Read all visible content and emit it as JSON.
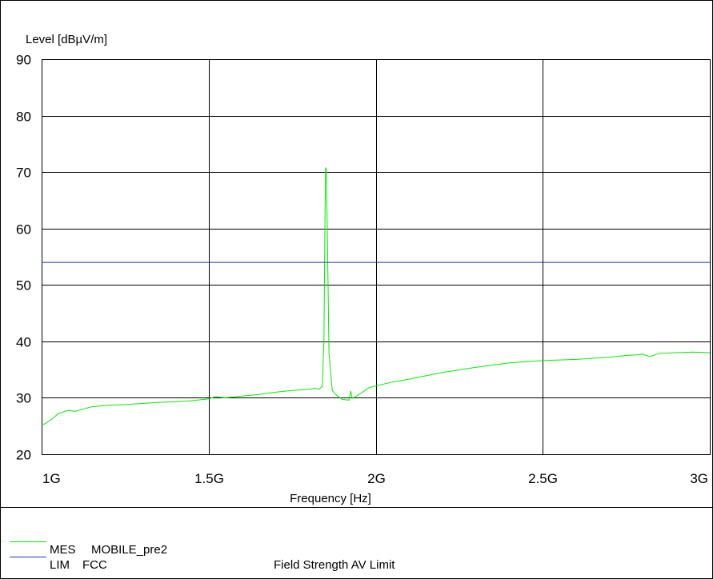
{
  "chart_data": {
    "type": "line",
    "ylabel": "Level [dBµV/m]",
    "xlabel": "Frequency [Hz]",
    "x_range_hz": [
      1000000000,
      3000000000
    ],
    "ylim": [
      20,
      90
    ],
    "grid": true,
    "x_ticks": [
      {
        "value": 1000000000,
        "label": "1G"
      },
      {
        "value": 1500000000,
        "label": "1.5G"
      },
      {
        "value": 2000000000,
        "label": "2G"
      },
      {
        "value": 2500000000,
        "label": "2.5G"
      },
      {
        "value": 3000000000,
        "label": "3G"
      }
    ],
    "y_ticks": [
      20,
      30,
      40,
      50,
      60,
      70,
      80,
      90
    ],
    "series": [
      {
        "type_label": "MES",
        "name": "MOBILE_pre2",
        "color": "#00ee00",
        "x_ghz": [
          1.0,
          1.01,
          1.02,
          1.03,
          1.05,
          1.08,
          1.1,
          1.15,
          1.2,
          1.25,
          1.3,
          1.35,
          1.4,
          1.45,
          1.5,
          1.52,
          1.55,
          1.6,
          1.65,
          1.7,
          1.75,
          1.8,
          1.82,
          1.83,
          1.84,
          1.845,
          1.848,
          1.85,
          1.852,
          1.855,
          1.86,
          1.87,
          1.88,
          1.9,
          1.92,
          1.925,
          1.93,
          1.94,
          1.96,
          1.98,
          2.0,
          2.05,
          2.1,
          2.15,
          2.2,
          2.3,
          2.35,
          2.4,
          2.45,
          2.5,
          2.6,
          2.65,
          2.7,
          2.75,
          2.8,
          2.82,
          2.85,
          2.9,
          2.95,
          3.0
        ],
        "y": [
          25.2,
          25.4,
          25.8,
          26.2,
          27.2,
          27.8,
          27.6,
          28.4,
          28.7,
          28.8,
          29.0,
          29.2,
          29.3,
          29.5,
          29.8,
          30.2,
          30.0,
          30.3,
          30.6,
          31.0,
          31.3,
          31.5,
          31.7,
          31.5,
          32.0,
          40.0,
          60.0,
          70.8,
          70.5,
          60.0,
          38.0,
          31.3,
          30.6,
          29.7,
          29.6,
          31.2,
          29.9,
          30.2,
          31.0,
          31.8,
          32.1,
          32.8,
          33.3,
          33.9,
          34.5,
          35.4,
          35.8,
          36.2,
          36.4,
          36.6,
          36.8,
          37.0,
          37.2,
          37.5,
          37.7,
          37.3,
          37.9,
          38.0,
          38.1,
          38.0
        ]
      },
      {
        "type_label": "LIM",
        "name": "FCC",
        "description": "Field Strength AV Limit",
        "color": "#1b2fb8",
        "x_ghz": [
          1.0,
          3.0
        ],
        "y": [
          54,
          54
        ]
      }
    ]
  }
}
